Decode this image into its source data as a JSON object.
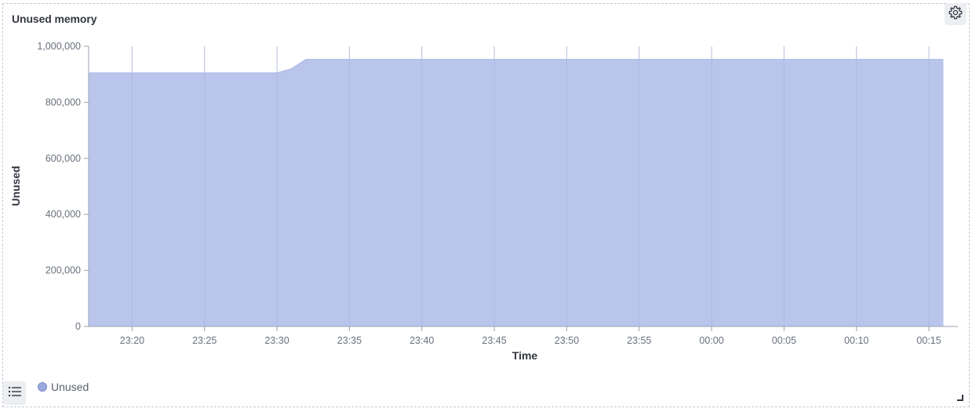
{
  "panel": {
    "title": "Unused memory"
  },
  "icons": {
    "settings": "gear-icon",
    "legend_toggle": "list-icon",
    "resize": "resize-corner-icon"
  },
  "colors": {
    "series_fill": "#b9c5ea",
    "series_stroke": "#a4b2e3",
    "grid": "#d3d8e4",
    "axis": "#98a2b3"
  },
  "legend": {
    "items": [
      {
        "label": "Unused"
      }
    ]
  },
  "chart_data": {
    "type": "area",
    "xlabel": "Time",
    "ylabel": "Unused",
    "ylim": [
      0,
      1000000
    ],
    "xlim": [
      "23:17",
      "00:17"
    ],
    "y_ticks": [
      "0",
      "200,000",
      "400,000",
      "600,000",
      "800,000",
      "1,000,000"
    ],
    "y_tick_values": [
      0,
      200000,
      400000,
      600000,
      800000,
      1000000
    ],
    "x_ticks": [
      "23:20",
      "23:25",
      "23:30",
      "23:35",
      "23:40",
      "23:45",
      "23:50",
      "23:55",
      "00:00",
      "00:05",
      "00:10",
      "00:15"
    ],
    "grid": true,
    "legend_position": "bottom-left",
    "series": [
      {
        "name": "Unused",
        "x": [
          "23:17",
          "23:30",
          "23:31",
          "23:32",
          "00:16"
        ],
        "values": [
          905000,
          905000,
          920000,
          953000,
          953000
        ]
      }
    ]
  }
}
